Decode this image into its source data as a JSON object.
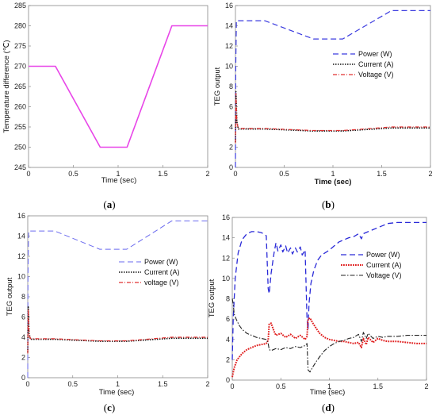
{
  "chart_data": [
    {
      "id": "a",
      "type": "line",
      "caption_letter": "a",
      "xlabel": "Time (sec)",
      "ylabel": "Temperature difference (℃)",
      "xlim": [
        0,
        2
      ],
      "ylim": [
        245,
        285
      ],
      "xticks": [
        0,
        0.5,
        1,
        1.5,
        2
      ],
      "yticks": [
        245,
        250,
        255,
        260,
        265,
        270,
        275,
        280,
        285
      ],
      "xtick_labels": [
        "0",
        "0.5",
        "1",
        "1.5",
        "2"
      ],
      "ytick_labels": [
        "245",
        "250",
        "255",
        "260",
        "265",
        "270",
        "275",
        "280",
        "285"
      ],
      "grid": false,
      "series": [
        {
          "color": "#e845e8",
          "dash": "solid",
          "width": 1.6,
          "x": [
            0,
            0.3,
            0.8,
            1.1,
            1.6,
            2.0
          ],
          "y": [
            270,
            270,
            250,
            250,
            280,
            280
          ]
        }
      ]
    },
    {
      "id": "b",
      "type": "line",
      "caption_letter": "b",
      "xlabel": "Time (sec)",
      "ylabel": "TEG output",
      "xlim": [
        0,
        2
      ],
      "ylim": [
        0,
        16
      ],
      "xticks": [
        0,
        0.5,
        1,
        1.5,
        2
      ],
      "yticks": [
        0,
        2,
        4,
        6,
        8,
        10,
        12,
        14,
        16
      ],
      "xtick_labels": [
        "0",
        "0.5",
        "1",
        "1.5",
        "2"
      ],
      "ytick_labels": [
        "0",
        "2",
        "4",
        "6",
        "8",
        "10",
        "12",
        "14",
        "16"
      ],
      "grid": false,
      "legend": {
        "position": "right"
      },
      "series": [
        {
          "name": "Power (W)",
          "color": "#3a3adf",
          "dash": "7,4",
          "width": 1.2,
          "x": [
            0,
            0.003,
            0.01,
            0.02,
            0.3,
            0.8,
            1.1,
            1.6,
            2.0
          ],
          "y": [
            0,
            10,
            14.5,
            14.5,
            14.5,
            12.7,
            12.7,
            15.5,
            15.5
          ]
        },
        {
          "name": "Current (A)",
          "color": "#111111",
          "dash": "1.5,1.5",
          "width": 1.6,
          "x": [
            0,
            0.005,
            0.015,
            0.03,
            0.3,
            0.8,
            1.1,
            1.6,
            2.0
          ],
          "y": [
            2.5,
            7.5,
            4.5,
            3.8,
            3.8,
            3.6,
            3.6,
            3.9,
            3.9
          ]
        },
        {
          "name": "Voltage (V)",
          "color": "#e03030",
          "dash": "5,2,1,2",
          "width": 1.2,
          "x": [
            0,
            0.005,
            0.015,
            0.03,
            0.3,
            0.8,
            1.1,
            1.6,
            2.0
          ],
          "y": [
            2.4,
            7.3,
            4.4,
            3.85,
            3.85,
            3.65,
            3.65,
            4.0,
            4.0
          ]
        }
      ]
    },
    {
      "id": "c",
      "type": "line",
      "caption_letter": "c",
      "xlabel": "Time (sec)",
      "ylabel": "TEG output",
      "xlim": [
        0,
        2
      ],
      "ylim": [
        0,
        16
      ],
      "xticks": [
        0,
        0.5,
        1,
        1.5,
        2
      ],
      "yticks": [
        0,
        2,
        4,
        6,
        8,
        10,
        12,
        14,
        16
      ],
      "xtick_labels": [
        "0",
        "0.5",
        "1",
        "1.5",
        "2"
      ],
      "ytick_labels": [
        "0",
        "2",
        "4",
        "6",
        "8",
        "10",
        "12",
        "14",
        "16"
      ],
      "grid": false,
      "legend": {
        "position": "right"
      },
      "series": [
        {
          "name": "Power (W)",
          "color": "#6a6aef",
          "dash": "7,4",
          "width": 1.0,
          "x": [
            0,
            0.003,
            0.01,
            0.02,
            0.3,
            0.8,
            1.1,
            1.6,
            2.0
          ],
          "y": [
            0,
            10,
            14.5,
            14.5,
            14.5,
            12.7,
            12.7,
            15.5,
            15.5
          ]
        },
        {
          "name": "Current (A)",
          "color": "#111111",
          "dash": "1.5,1.5",
          "width": 1.6,
          "x": [
            0,
            0.005,
            0.015,
            0.03,
            0.3,
            0.8,
            1.1,
            1.6,
            2.0
          ],
          "y": [
            2.5,
            7.0,
            4.4,
            3.8,
            3.8,
            3.6,
            3.6,
            3.9,
            3.9
          ]
        },
        {
          "name": "voltage (V)",
          "color": "#e03030",
          "dash": "5,2,1,2",
          "width": 1.2,
          "x": [
            0,
            0.005,
            0.015,
            0.03,
            0.3,
            0.8,
            1.1,
            1.6,
            2.0
          ],
          "y": [
            2.4,
            6.8,
            4.3,
            3.85,
            3.85,
            3.65,
            3.65,
            4.0,
            4.0
          ]
        }
      ]
    },
    {
      "id": "d",
      "type": "line",
      "caption_letter": "d",
      "xlabel": "Time (sec)",
      "ylabel": "TEG output",
      "xlim": [
        0,
        2
      ],
      "ylim": [
        0,
        16
      ],
      "xticks": [
        0,
        0.5,
        1,
        1.5,
        2
      ],
      "yticks": [
        0,
        2,
        4,
        6,
        8,
        10,
        12,
        14,
        16
      ],
      "xtick_labels": [
        "0",
        "0.5",
        "1",
        "1.5",
        "2"
      ],
      "ytick_labels": [
        "0",
        "2",
        "4",
        "6",
        "8",
        "10",
        "12",
        "14",
        "16"
      ],
      "grid": false,
      "legend": {
        "position": "right"
      },
      "series": [
        {
          "name": "Power (W)",
          "color": "#2a2ad8",
          "dash": "7,4",
          "width": 1.3,
          "x": [
            0,
            0.01,
            0.03,
            0.06,
            0.1,
            0.15,
            0.2,
            0.25,
            0.3,
            0.35,
            0.37,
            0.38,
            0.4,
            0.43,
            0.45,
            0.47,
            0.5,
            0.52,
            0.55,
            0.57,
            0.6,
            0.62,
            0.65,
            0.67,
            0.7,
            0.72,
            0.75,
            0.77,
            0.78,
            0.79,
            0.81,
            0.84,
            0.88,
            0.92,
            0.97,
            1.0,
            1.05,
            1.1,
            1.15,
            1.2,
            1.25,
            1.3,
            1.33,
            1.35,
            1.4,
            1.45,
            1.5,
            1.55,
            1.6,
            1.7,
            1.8,
            1.9,
            2.0
          ],
          "y": [
            2.0,
            6.0,
            10.0,
            12.5,
            13.8,
            14.4,
            14.6,
            14.6,
            14.5,
            14.2,
            9.0,
            8.5,
            10.5,
            12.5,
            13.5,
            12.7,
            13.3,
            12.6,
            13.2,
            12.5,
            13.0,
            12.4,
            13.0,
            12.6,
            13.1,
            12.3,
            12.8,
            6.0,
            5.0,
            7.5,
            9.5,
            10.8,
            11.8,
            12.3,
            12.6,
            12.8,
            13.2,
            13.6,
            13.8,
            14.0,
            14.1,
            14.4,
            13.9,
            14.4,
            14.6,
            14.8,
            15.0,
            15.2,
            15.4,
            15.5,
            15.5,
            15.5,
            15.5
          ]
        },
        {
          "name": "Current (A)",
          "color": "#e02020",
          "dash": "1.8,1.2",
          "width": 2.0,
          "x": [
            0,
            0.02,
            0.05,
            0.1,
            0.15,
            0.2,
            0.25,
            0.3,
            0.35,
            0.37,
            0.38,
            0.4,
            0.43,
            0.45,
            0.5,
            0.55,
            0.6,
            0.65,
            0.7,
            0.75,
            0.77,
            0.78,
            0.8,
            0.83,
            0.87,
            0.9,
            0.95,
            1.0,
            1.05,
            1.1,
            1.15,
            1.2,
            1.25,
            1.3,
            1.33,
            1.35,
            1.38,
            1.4,
            1.45,
            1.5,
            1.55,
            1.6,
            1.7,
            1.8,
            1.9,
            2.0
          ],
          "y": [
            0.3,
            1.2,
            2.0,
            2.6,
            3.0,
            3.2,
            3.4,
            3.5,
            3.6,
            3.9,
            5.5,
            5.6,
            4.8,
            4.4,
            4.6,
            4.2,
            4.5,
            4.1,
            4.4,
            4.0,
            4.3,
            6.0,
            6.1,
            5.6,
            5.0,
            4.6,
            4.2,
            4.0,
            3.9,
            3.8,
            3.8,
            3.7,
            3.6,
            3.7,
            3.2,
            4.1,
            3.5,
            4.2,
            3.7,
            4.1,
            3.9,
            3.8,
            3.8,
            3.7,
            3.6,
            3.6
          ]
        },
        {
          "name": "Voltage (V)",
          "color": "#222222",
          "dash": "6,2,1.5,2",
          "width": 1.1,
          "x": [
            0,
            0.01,
            0.02,
            0.04,
            0.07,
            0.1,
            0.15,
            0.2,
            0.25,
            0.3,
            0.35,
            0.37,
            0.38,
            0.4,
            0.45,
            0.5,
            0.55,
            0.6,
            0.65,
            0.7,
            0.75,
            0.77,
            0.78,
            0.8,
            0.83,
            0.87,
            0.9,
            0.95,
            1.0,
            1.05,
            1.1,
            1.15,
            1.2,
            1.25,
            1.3,
            1.33,
            1.35,
            1.38,
            1.4,
            1.45,
            1.5,
            1.55,
            1.6,
            1.7,
            1.8,
            1.9,
            2.0
          ],
          "y": [
            8.0,
            7.5,
            6.5,
            6.0,
            5.4,
            5.0,
            4.6,
            4.4,
            4.2,
            4.1,
            4.0,
            3.6,
            3.0,
            2.9,
            3.1,
            3.0,
            3.2,
            3.1,
            3.3,
            3.2,
            3.4,
            3.6,
            1.0,
            0.8,
            1.3,
            1.9,
            2.3,
            2.9,
            3.3,
            3.6,
            3.8,
            3.9,
            4.1,
            4.2,
            4.5,
            3.8,
            4.7,
            4.1,
            4.6,
            4.1,
            4.3,
            4.2,
            4.3,
            4.3,
            4.4,
            4.4,
            4.4
          ]
        }
      ]
    }
  ]
}
